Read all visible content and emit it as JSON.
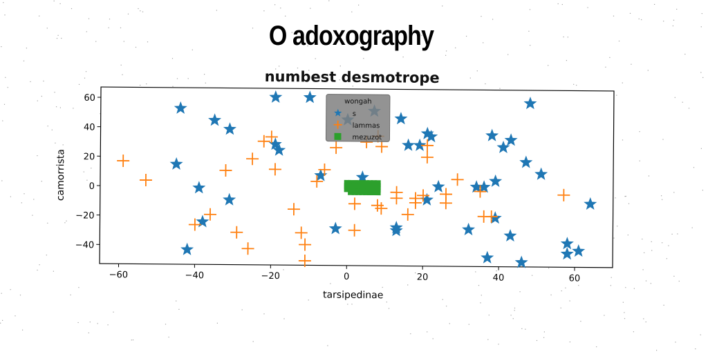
{
  "page": {
    "title": "O adoxography"
  },
  "chart_data": {
    "type": "scatter",
    "title": "numbest desmotrope",
    "xlabel": "tarsipedinae",
    "ylabel": "camorrista",
    "xlim": [
      -65,
      70
    ],
    "ylim": [
      -53,
      67
    ],
    "xticks": [
      -60,
      -40,
      -20,
      0,
      20,
      40,
      60
    ],
    "yticks": [
      -40,
      -20,
      0,
      20,
      40,
      60
    ],
    "legend": {
      "title": "wongah",
      "position": "upper-center"
    },
    "grid": false,
    "series": [
      {
        "name": "s",
        "marker": "star",
        "color": "#1f77b4",
        "points": [
          [
            -44,
            53
          ],
          [
            -19,
            61
          ],
          [
            -10,
            61
          ],
          [
            7,
            52
          ],
          [
            0,
            46
          ],
          [
            14,
            47
          ],
          [
            21,
            37
          ],
          [
            22,
            35
          ],
          [
            48,
            58
          ],
          [
            -35,
            45
          ],
          [
            -31,
            39
          ],
          [
            -19,
            29
          ],
          [
            -18,
            25
          ],
          [
            16,
            29
          ],
          [
            19,
            29
          ],
          [
            38,
            36
          ],
          [
            41,
            28
          ],
          [
            43,
            33
          ],
          [
            -45,
            15
          ],
          [
            -7,
            8
          ],
          [
            4,
            7
          ],
          [
            24,
            1
          ],
          [
            34,
            1
          ],
          [
            36,
            1
          ],
          [
            39,
            5
          ],
          [
            47,
            18
          ],
          [
            51,
            10
          ],
          [
            -39,
            -1
          ],
          [
            -31,
            -9
          ],
          [
            21,
            -8
          ],
          [
            64,
            -10
          ],
          [
            -38,
            -24
          ],
          [
            -3,
            -28
          ],
          [
            13,
            -27
          ],
          [
            13,
            -29
          ],
          [
            32,
            -28
          ],
          [
            39,
            -20
          ],
          [
            43,
            -32
          ],
          [
            58,
            -37
          ],
          [
            -42,
            -43
          ],
          [
            37,
            -47
          ],
          [
            46,
            -50
          ],
          [
            58,
            -44
          ],
          [
            61,
            -42
          ]
        ]
      },
      {
        "name": "lammas",
        "marker": "plus",
        "color": "#ff7f0e",
        "points": [
          [
            -59,
            17
          ],
          [
            -53,
            4
          ],
          [
            -22,
            31
          ],
          [
            -20,
            34
          ],
          [
            -25,
            19
          ],
          [
            -32,
            11
          ],
          [
            -19,
            12
          ],
          [
            -6,
            12
          ],
          [
            -8,
            4
          ],
          [
            -3,
            27
          ],
          [
            5,
            31
          ],
          [
            8,
            35
          ],
          [
            9,
            28
          ],
          [
            21,
            29
          ],
          [
            21,
            21
          ],
          [
            29,
            6
          ],
          [
            26,
            -4
          ],
          [
            26,
            -10
          ],
          [
            20,
            -5
          ],
          [
            13,
            -3
          ],
          [
            13,
            -7
          ],
          [
            18,
            -7
          ],
          [
            18,
            -10
          ],
          [
            16,
            -18
          ],
          [
            8,
            -12
          ],
          [
            9,
            -14
          ],
          [
            2,
            -11
          ],
          [
            2,
            -29
          ],
          [
            -40,
            -26
          ],
          [
            -36,
            -19
          ],
          [
            -29,
            -31
          ],
          [
            -26,
            -42
          ],
          [
            -14,
            -15
          ],
          [
            -12,
            -31
          ],
          [
            -11,
            -39
          ],
          [
            -11,
            -50
          ],
          [
            35,
            -2
          ],
          [
            36,
            -19
          ],
          [
            38,
            -19
          ],
          [
            57,
            -4
          ]
        ]
      },
      {
        "name": "mezuzot",
        "marker": "square",
        "color": "#2ca02c",
        "points": [
          [
            0,
            3
          ],
          [
            1,
            3
          ],
          [
            2,
            3
          ],
          [
            3,
            3
          ],
          [
            4,
            3
          ],
          [
            5,
            3
          ],
          [
            6,
            3
          ],
          [
            7,
            3
          ],
          [
            8,
            3
          ],
          [
            0,
            1
          ],
          [
            1,
            1
          ],
          [
            2,
            1
          ],
          [
            3,
            1
          ],
          [
            4,
            1
          ],
          [
            5,
            1
          ],
          [
            6,
            1
          ],
          [
            7,
            1
          ],
          [
            8,
            1
          ],
          [
            0,
            -1
          ],
          [
            1,
            -1
          ],
          [
            2,
            -1
          ],
          [
            3,
            -1
          ],
          [
            4,
            -1
          ],
          [
            5,
            -1
          ],
          [
            6,
            -1
          ],
          [
            7,
            -1
          ],
          [
            8,
            -1
          ],
          [
            1,
            -3
          ],
          [
            2,
            -3
          ],
          [
            3,
            -3
          ],
          [
            4,
            -3
          ],
          [
            5,
            -3
          ],
          [
            6,
            -3
          ],
          [
            7,
            -3
          ],
          [
            8,
            -3
          ]
        ]
      }
    ]
  }
}
